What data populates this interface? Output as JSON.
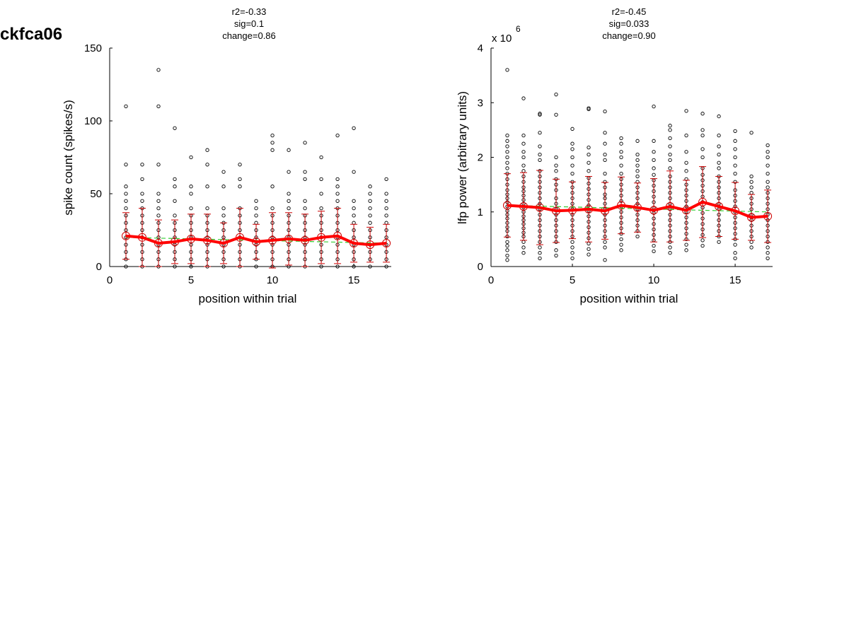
{
  "figure_title": "ckfca06",
  "chart_data": [
    {
      "type": "scatter",
      "title_lines": [
        "r2=-0.33",
        "sig=0.1",
        "change=0.86"
      ],
      "xlabel": "position within trial",
      "ylabel": "spike count (spikes/s)",
      "exponent_label": "",
      "xlim": [
        0,
        17.3
      ],
      "ylim": [
        0,
        150
      ],
      "xticks": [
        0,
        5,
        10,
        15
      ],
      "yticks": [
        0,
        50,
        100,
        150
      ],
      "ytick_labels": [
        "0",
        "50",
        "100",
        "150"
      ],
      "grid": false,
      "colors": {
        "points": "#000000",
        "mean": "#ff0000",
        "errorbars": "#cc0000",
        "fit": "#33cc33"
      },
      "scatter": [
        {
          "x": 1,
          "y": [
            0,
            5,
            10,
            15,
            20,
            25,
            30,
            35,
            40,
            45,
            50,
            55,
            70,
            110
          ]
        },
        {
          "x": 2,
          "y": [
            0,
            5,
            10,
            15,
            20,
            25,
            30,
            35,
            40,
            45,
            50,
            60,
            70
          ]
        },
        {
          "x": 3,
          "y": [
            0,
            5,
            10,
            15,
            20,
            25,
            30,
            35,
            40,
            45,
            50,
            70,
            110,
            135
          ]
        },
        {
          "x": 4,
          "y": [
            0,
            5,
            10,
            15,
            20,
            25,
            30,
            35,
            45,
            55,
            60,
            95
          ]
        },
        {
          "x": 5,
          "y": [
            0,
            5,
            10,
            15,
            20,
            25,
            30,
            35,
            40,
            50,
            55,
            75
          ]
        },
        {
          "x": 6,
          "y": [
            0,
            5,
            10,
            15,
            20,
            25,
            30,
            35,
            40,
            55,
            70,
            80
          ]
        },
        {
          "x": 7,
          "y": [
            0,
            5,
            10,
            15,
            20,
            25,
            30,
            35,
            40,
            55,
            65
          ]
        },
        {
          "x": 8,
          "y": [
            0,
            5,
            10,
            15,
            20,
            25,
            30,
            35,
            40,
            55,
            60,
            70
          ]
        },
        {
          "x": 9,
          "y": [
            0,
            5,
            10,
            15,
            20,
            25,
            30,
            35,
            40,
            45
          ]
        },
        {
          "x": 10,
          "y": [
            0,
            5,
            10,
            15,
            20,
            25,
            30,
            35,
            40,
            55,
            80,
            85,
            90
          ]
        },
        {
          "x": 11,
          "y": [
            0,
            5,
            10,
            15,
            20,
            25,
            30,
            35,
            40,
            45,
            50,
            65,
            80
          ]
        },
        {
          "x": 12,
          "y": [
            0,
            5,
            10,
            15,
            20,
            25,
            30,
            35,
            40,
            45,
            60,
            65,
            85
          ]
        },
        {
          "x": 13,
          "y": [
            0,
            5,
            10,
            15,
            20,
            25,
            30,
            35,
            40,
            50,
            60,
            75
          ]
        },
        {
          "x": 14,
          "y": [
            0,
            5,
            10,
            15,
            20,
            25,
            30,
            35,
            40,
            45,
            50,
            55,
            60,
            90
          ]
        },
        {
          "x": 15,
          "y": [
            0,
            5,
            10,
            15,
            20,
            25,
            30,
            35,
            40,
            45,
            65,
            95
          ]
        },
        {
          "x": 16,
          "y": [
            0,
            5,
            10,
            15,
            20,
            25,
            30,
            35,
            40,
            45,
            50,
            55
          ]
        },
        {
          "x": 17,
          "y": [
            0,
            5,
            10,
            15,
            20,
            25,
            30,
            35,
            40,
            45,
            50,
            60
          ]
        }
      ],
      "mean": [
        21,
        20,
        16,
        17,
        19,
        18,
        16,
        20,
        17,
        18,
        19,
        18,
        20,
        21,
        16,
        15,
        16
      ],
      "errorbar": [
        16,
        20,
        16,
        15,
        17,
        18,
        14,
        20,
        12,
        19,
        18,
        18,
        18,
        19,
        13,
        12,
        13
      ],
      "fit": {
        "x": [
          1,
          17
        ],
        "y": [
          20,
          16
        ]
      }
    },
    {
      "type": "scatter",
      "title_lines": [
        "r2=-0.45",
        "sig=0.033",
        "change=0.90"
      ],
      "xlabel": "position within trial",
      "ylabel": "lfp power (arbitrary units)",
      "exponent_label": "x 10",
      "exponent_power": "6",
      "xlim": [
        0,
        17.3
      ],
      "ylim": [
        0,
        4
      ],
      "xticks": [
        0,
        5,
        10,
        15
      ],
      "yticks": [
        0,
        1,
        2,
        3,
        4
      ],
      "ytick_labels": [
        "0",
        "1",
        "2",
        "3",
        "4"
      ],
      "grid": false,
      "colors": {
        "points": "#000000",
        "mean": "#ff0000",
        "errorbars": "#cc0000",
        "fit": "#33cc33"
      },
      "scatter": [
        {
          "x": 1,
          "y": [
            0.12,
            0.2,
            0.3,
            0.38,
            0.45,
            0.55,
            0.65,
            0.72,
            0.8,
            0.88,
            0.95,
            1.02,
            1.1,
            1.18,
            1.25,
            1.32,
            1.4,
            1.5,
            1.6,
            1.7,
            1.8,
            1.9,
            2.0,
            2.1,
            2.2,
            2.3,
            2.4,
            3.6
          ]
        },
        {
          "x": 2,
          "y": [
            0.25,
            0.35,
            0.45,
            0.55,
            0.62,
            0.7,
            0.78,
            0.85,
            0.92,
            1.0,
            1.08,
            1.15,
            1.22,
            1.3,
            1.38,
            1.45,
            1.55,
            1.65,
            1.75,
            1.85,
            2.0,
            2.1,
            2.25,
            2.4,
            3.08
          ]
        },
        {
          "x": 3,
          "y": [
            0.15,
            0.25,
            0.35,
            0.45,
            0.55,
            0.65,
            0.75,
            0.85,
            0.95,
            1.05,
            1.15,
            1.25,
            1.35,
            1.45,
            1.55,
            1.65,
            1.75,
            1.95,
            2.05,
            2.2,
            2.45,
            2.78,
            2.8
          ]
        },
        {
          "x": 4,
          "y": [
            0.2,
            0.3,
            0.45,
            0.55,
            0.65,
            0.75,
            0.85,
            0.95,
            1.05,
            1.15,
            1.25,
            1.4,
            1.5,
            1.6,
            1.75,
            1.85,
            2.0,
            2.78,
            3.15
          ]
        },
        {
          "x": 5,
          "y": [
            0.15,
            0.25,
            0.35,
            0.45,
            0.55,
            0.65,
            0.75,
            0.85,
            0.95,
            1.05,
            1.15,
            1.25,
            1.35,
            1.45,
            1.55,
            1.7,
            1.85,
            2.0,
            2.15,
            2.25,
            2.52
          ]
        },
        {
          "x": 6,
          "y": [
            0.22,
            0.32,
            0.42,
            0.52,
            0.62,
            0.72,
            0.82,
            0.92,
            1.02,
            1.12,
            1.22,
            1.32,
            1.42,
            1.52,
            1.62,
            1.75,
            1.9,
            2.05,
            2.18,
            2.88,
            2.9
          ]
        },
        {
          "x": 7,
          "y": [
            0.12,
            0.35,
            0.45,
            0.55,
            0.65,
            0.75,
            0.85,
            0.95,
            1.05,
            1.15,
            1.25,
            1.32,
            1.45,
            1.55,
            1.7,
            1.95,
            2.05,
            2.25,
            2.45,
            2.84
          ]
        },
        {
          "x": 8,
          "y": [
            0.3,
            0.4,
            0.5,
            0.6,
            0.7,
            0.8,
            0.9,
            1.0,
            1.1,
            1.2,
            1.3,
            1.4,
            1.5,
            1.6,
            1.7,
            1.85,
            2.0,
            2.1,
            2.25,
            2.35
          ]
        },
        {
          "x": 9,
          "y": [
            0.55,
            0.65,
            0.75,
            0.85,
            0.95,
            1.05,
            1.15,
            1.25,
            1.35,
            1.45,
            1.55,
            1.65,
            1.75,
            1.85,
            1.95,
            2.05,
            2.3
          ]
        },
        {
          "x": 10,
          "y": [
            0.28,
            0.38,
            0.48,
            0.58,
            0.68,
            0.78,
            0.88,
            0.98,
            1.08,
            1.18,
            1.28,
            1.38,
            1.48,
            1.58,
            1.68,
            1.8,
            1.95,
            2.1,
            2.3,
            2.93
          ]
        },
        {
          "x": 11,
          "y": [
            0.25,
            0.35,
            0.45,
            0.55,
            0.65,
            0.75,
            0.85,
            0.95,
            1.05,
            1.15,
            1.25,
            1.35,
            1.45,
            1.55,
            1.65,
            1.8,
            1.95,
            2.05,
            2.2,
            2.35,
            2.5,
            2.58
          ]
        },
        {
          "x": 12,
          "y": [
            0.3,
            0.4,
            0.5,
            0.6,
            0.7,
            0.8,
            0.9,
            1.0,
            1.1,
            1.2,
            1.3,
            1.4,
            1.5,
            1.6,
            1.75,
            1.9,
            2.1,
            2.4,
            2.85
          ]
        },
        {
          "x": 13,
          "y": [
            0.38,
            0.48,
            0.58,
            0.68,
            0.78,
            0.88,
            0.98,
            1.08,
            1.18,
            1.28,
            1.38,
            1.48,
            1.58,
            1.68,
            1.8,
            2.0,
            2.15,
            2.4,
            2.5,
            2.8
          ]
        },
        {
          "x": 14,
          "y": [
            0.45,
            0.55,
            0.65,
            0.75,
            0.85,
            0.95,
            1.05,
            1.15,
            1.25,
            1.35,
            1.45,
            1.55,
            1.65,
            1.8,
            1.9,
            2.05,
            2.2,
            2.4,
            2.75
          ]
        },
        {
          "x": 15,
          "y": [
            0.15,
            0.25,
            0.4,
            0.5,
            0.6,
            0.7,
            0.8,
            0.9,
            1.0,
            1.1,
            1.2,
            1.3,
            1.4,
            1.55,
            1.7,
            1.85,
            2.0,
            2.15,
            2.3,
            2.48
          ]
        },
        {
          "x": 16,
          "y": [
            0.35,
            0.45,
            0.55,
            0.65,
            0.75,
            0.85,
            0.95,
            1.05,
            1.15,
            1.25,
            1.35,
            1.45,
            1.55,
            1.65,
            2.45
          ]
        },
        {
          "x": 17,
          "y": [
            0.15,
            0.25,
            0.35,
            0.45,
            0.55,
            0.65,
            0.75,
            0.85,
            0.95,
            1.05,
            1.15,
            1.25,
            1.35,
            1.45,
            1.55,
            1.7,
            1.85,
            2.0,
            2.1,
            2.22
          ]
        }
      ],
      "mean": [
        1.12,
        1.1,
        1.08,
        1.02,
        1.03,
        1.05,
        1.02,
        1.12,
        1.08,
        1.03,
        1.1,
        1.03,
        1.18,
        1.1,
        1.02,
        0.9,
        0.92
      ],
      "errorbar": [
        0.58,
        0.62,
        0.68,
        0.58,
        0.52,
        0.6,
        0.52,
        0.52,
        0.45,
        0.58,
        0.65,
        0.55,
        0.65,
        0.55,
        0.52,
        0.42,
        0.48
      ],
      "fit": {
        "x": [
          1,
          17
        ],
        "y": [
          1.12,
          1.0
        ]
      }
    }
  ]
}
